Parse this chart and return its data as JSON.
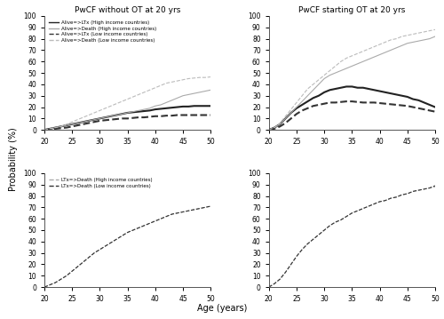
{
  "title_tl": "PwCF without OT at 20 yrs",
  "title_tr": "PwCF starting OT at 20 yrs",
  "xlabel": "Age (years)",
  "ylabel": "Probability (%)",
  "age": [
    20,
    21,
    22,
    23,
    24,
    25,
    26,
    27,
    28,
    29,
    30,
    31,
    32,
    33,
    34,
    35,
    36,
    37,
    38,
    39,
    40,
    41,
    42,
    43,
    44,
    45,
    46,
    47,
    48,
    49,
    50
  ],
  "tl_alive_ltx_high": [
    0,
    1,
    2,
    3,
    4,
    5,
    6,
    7,
    8,
    9,
    10,
    11,
    12,
    13,
    14,
    15,
    15.5,
    16,
    16.5,
    17,
    18,
    18.5,
    19,
    19.5,
    20,
    20.5,
    20.5,
    21,
    21,
    21,
    21
  ],
  "tl_alive_death_high": [
    0,
    1,
    2,
    3,
    4,
    5,
    6,
    7,
    8,
    9,
    10,
    11,
    12,
    13,
    14,
    15,
    16,
    17,
    18,
    19,
    21,
    22,
    24,
    26,
    28,
    30,
    31,
    32,
    33,
    34,
    35
  ],
  "tl_alive_ltx_low": [
    0,
    0.5,
    1,
    1.5,
    2,
    3,
    4,
    5,
    6,
    7,
    8,
    8.5,
    9,
    9.5,
    10,
    10,
    10.5,
    11,
    11,
    11.5,
    12,
    12,
    12.5,
    12.5,
    13,
    13,
    13,
    13,
    13,
    13,
    13
  ],
  "tl_alive_death_low": [
    0,
    1,
    2,
    3,
    5,
    7,
    9,
    11,
    13,
    15,
    17,
    19,
    21,
    23,
    25,
    27,
    29,
    31,
    33,
    35,
    37,
    39,
    41,
    42,
    43,
    44,
    45,
    45.5,
    46,
    46,
    46.5
  ],
  "tr_alive_ltx_high": [
    0,
    2,
    5,
    10,
    15,
    19,
    22,
    25,
    28,
    30,
    33,
    35,
    36,
    37,
    38,
    38,
    37,
    37,
    36,
    35,
    34,
    33,
    32,
    31,
    30,
    29,
    27,
    26,
    24,
    22,
    20
  ],
  "tr_alive_death_high": [
    0,
    2,
    5,
    10,
    15,
    20,
    25,
    30,
    35,
    40,
    45,
    48,
    50,
    52,
    54,
    56,
    58,
    60,
    62,
    64,
    66,
    68,
    70,
    72,
    74,
    76,
    77,
    78,
    79,
    80,
    82
  ],
  "tr_alive_ltx_low": [
    0,
    1,
    3,
    6,
    10,
    14,
    17,
    19,
    21,
    22,
    23,
    24,
    24,
    24.5,
    25,
    25,
    24.5,
    24,
    24,
    24,
    23.5,
    23,
    22.5,
    22,
    21.5,
    21,
    20,
    19,
    18,
    17,
    16
  ],
  "tr_alive_death_low": [
    0,
    2,
    6,
    12,
    18,
    24,
    30,
    36,
    40,
    44,
    48,
    52,
    56,
    60,
    63,
    65,
    67,
    69,
    71,
    73,
    75,
    77,
    79,
    80,
    82,
    83,
    84,
    85,
    86,
    87,
    88
  ],
  "bl_ltx_death_high": [
    0,
    2,
    4,
    7,
    10,
    14,
    18,
    22,
    26,
    30,
    33,
    36,
    39,
    42,
    45,
    48,
    50,
    52,
    54,
    56,
    58,
    60,
    62,
    64,
    65,
    66,
    67,
    68,
    69,
    70,
    71
  ],
  "bl_ltx_death_low": [
    0,
    2,
    4,
    7,
    10,
    14,
    18,
    22,
    26,
    30,
    33,
    36,
    39,
    42,
    45,
    48,
    50,
    52,
    54,
    56,
    58,
    60,
    62,
    64,
    65,
    66,
    67,
    68,
    69,
    70,
    71
  ],
  "br_ltx_death_high": [
    0,
    3,
    7,
    13,
    20,
    27,
    33,
    38,
    42,
    46,
    50,
    54,
    57,
    59,
    62,
    65,
    67,
    69,
    71,
    73,
    75,
    76,
    78,
    79,
    81,
    82,
    84,
    85,
    86,
    87,
    88
  ],
  "br_ltx_death_low": [
    0,
    3,
    7,
    13,
    20,
    27,
    33,
    38,
    42,
    46,
    50,
    54,
    57,
    59,
    62,
    65,
    67,
    69,
    71,
    73,
    75,
    76,
    78,
    79,
    81,
    82,
    84,
    85,
    86,
    87,
    89
  ],
  "legend_tl": [
    "Alive=>LTx (High income countries)",
    "Alive=>Death (High income countries)",
    "Alive=>LTx (Low income countries)",
    "Alive=>Death (Low income countries)"
  ],
  "legend_bl": [
    "LTx=>Death (High income countries)",
    "LTx=>Death (Low income countries)"
  ],
  "ylim": [
    0,
    100
  ],
  "xlim": [
    20,
    50
  ],
  "yticks": [
    0,
    10,
    20,
    30,
    40,
    50,
    60,
    70,
    80,
    90,
    100
  ],
  "xticks": [
    20,
    25,
    30,
    35,
    40,
    45,
    50
  ]
}
